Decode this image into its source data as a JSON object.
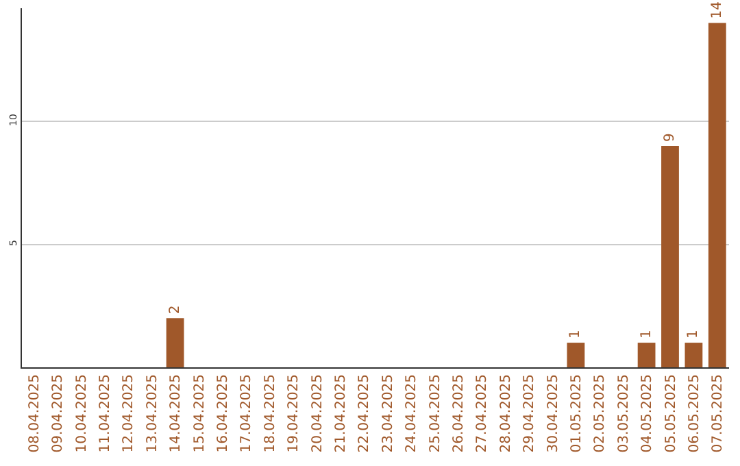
{
  "chart_data": {
    "type": "bar",
    "categories": [
      "08.04.2025",
      "09.04.2025",
      "10.04.2025",
      "11.04.2025",
      "12.04.2025",
      "13.04.2025",
      "14.04.2025",
      "15.04.2025",
      "16.04.2025",
      "17.04.2025",
      "18.04.2025",
      "19.04.2025",
      "20.04.2025",
      "21.04.2025",
      "22.04.2025",
      "23.04.2025",
      "24.04.2025",
      "25.04.2025",
      "26.04.2025",
      "27.04.2025",
      "28.04.2025",
      "29.04.2025",
      "30.04.2025",
      "01.05.2025",
      "02.05.2025",
      "03.05.2025",
      "04.05.2025",
      "05.05.2025",
      "06.05.2025",
      "07.05.2025"
    ],
    "values": [
      0,
      0,
      0,
      0,
      0,
      0,
      2,
      0,
      0,
      0,
      0,
      0,
      0,
      0,
      0,
      0,
      0,
      0,
      0,
      0,
      0,
      0,
      0,
      1,
      0,
      0,
      1,
      9,
      1,
      14
    ],
    "value_labels": [
      null,
      null,
      null,
      null,
      null,
      null,
      "2",
      null,
      null,
      null,
      null,
      null,
      null,
      null,
      null,
      null,
      null,
      null,
      null,
      null,
      null,
      null,
      null,
      "1",
      null,
      null,
      "1",
      "9",
      "1",
      "14"
    ],
    "color": "#a0582a",
    "ylim": [
      0,
      14.6
    ],
    "yticks": [
      5,
      10
    ],
    "grid": "y",
    "legend": false
  }
}
